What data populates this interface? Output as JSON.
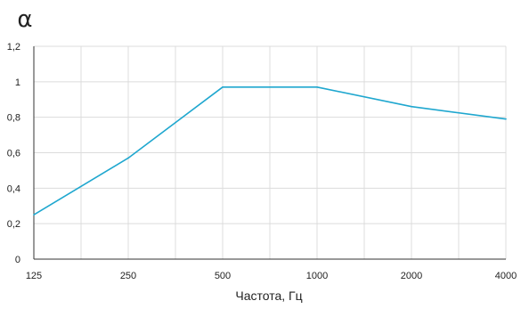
{
  "chart_data": {
    "type": "line",
    "ylabel": "α",
    "xlabel": "Частота, Гц",
    "categories": [
      "125",
      "250",
      "500",
      "1000",
      "2000",
      "4000"
    ],
    "x_tick_labels": [
      "125",
      "250",
      "500",
      "1000",
      "2000",
      "4000"
    ],
    "y_tick_labels": [
      "0",
      "0,2",
      "0,4",
      "0,6",
      "0,8",
      "1",
      "1,2"
    ],
    "yticks": [
      0,
      0.2,
      0.4,
      0.6,
      0.8,
      1.0,
      1.2
    ],
    "ylim": [
      0,
      1.2
    ],
    "grid": true,
    "legend": "none",
    "series": [
      {
        "values": [
          0.25,
          0.57,
          0.97,
          0.97,
          0.86,
          0.79
        ],
        "color": "#1fa7cf"
      }
    ],
    "colors": {
      "line": "#1fa7cf",
      "grid": "#dcdcdc",
      "axis": "#333333",
      "text": "#222222"
    }
  }
}
